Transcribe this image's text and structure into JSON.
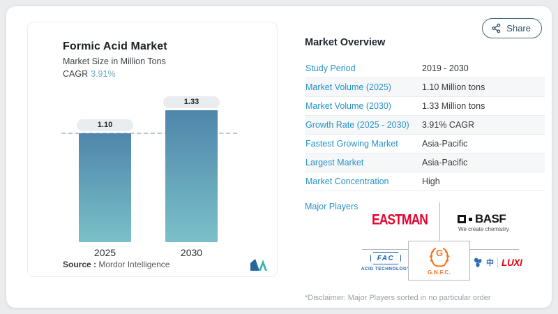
{
  "page": {
    "share_label": "Share"
  },
  "chart": {
    "title": "Formic Acid Market",
    "subtitle": "Market Size in Million Tons",
    "cagr_label": "CAGR",
    "cagr_value": "3.91%",
    "source_label": "Source :",
    "source_value": "Mordor Intelligence"
  },
  "chart_data": {
    "type": "bar",
    "title": "Formic Acid Market",
    "ylabel": "Market Size in Million Tons",
    "categories": [
      "2025",
      "2030"
    ],
    "values": [
      1.1,
      1.33
    ],
    "value_labels": [
      "1.10",
      "1.33"
    ],
    "reference_line": 1.1,
    "ylim": [
      0,
      1.5
    ],
    "grid": false,
    "bar_gradient": [
      "#4e86ab",
      "#7bc0c8"
    ]
  },
  "overview": {
    "heading": "Market Overview",
    "rows": [
      {
        "label": "Study Period",
        "value": "2019 - 2030"
      },
      {
        "label": "Market Volume (2025)",
        "value": "1.10 Million tons"
      },
      {
        "label": "Market Volume (2030)",
        "value": "1.33 Million tons"
      },
      {
        "label": "Growth Rate (2025 - 2030)",
        "value": "3.91% CAGR"
      },
      {
        "label": "Fastest Growing Market",
        "value": "Asia-Pacific"
      },
      {
        "label": "Largest Market",
        "value": "Asia-Pacific"
      },
      {
        "label": "Market Concentration",
        "value": "High"
      }
    ],
    "major_players_label": "Major Players",
    "players": [
      "Eastman",
      "BASF",
      "FAC Acid Technology",
      "GNFC",
      "LUXI"
    ],
    "disclaimer": "*Disclaimer: Major Players sorted in no particular order"
  },
  "logos": {
    "eastman_text": "EASTMAN",
    "basf_text": "BASF",
    "basf_tagline": "We create chemistry",
    "fac_text": "FAC",
    "fac_sub": "ACID TECHNOLOGY",
    "gnfc_letter": "G",
    "gnfc_sub": "G.N.F.C.",
    "luxi_cn": "中",
    "luxi_text": "LUXI"
  },
  "colors": {
    "accent_blue": "#2693c6",
    "bar_top": "#4e86ab",
    "bar_bottom": "#7bc0c8",
    "eastman_red": "#e4032e",
    "luxi_red": "#e60012",
    "gnfc_orange": "#f4731f",
    "fac_blue": "#1d63ae",
    "share_border": "#40697e"
  }
}
